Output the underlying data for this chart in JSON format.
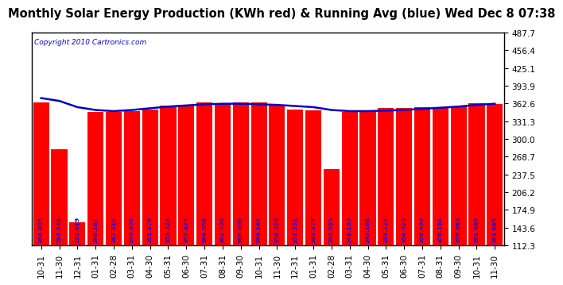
{
  "title": "Monthly Solar Energy Production (KWh red) & Running Avg (blue) Wed Dec 8 07:38",
  "copyright": "Copyright 2010 Cartronics.com",
  "categories": [
    "10-31",
    "11-30",
    "12-31",
    "01-31",
    "02-28",
    "03-31",
    "04-30",
    "05-31",
    "06-30",
    "07-31",
    "08-31",
    "09-30",
    "10-31",
    "11-30",
    "12-31",
    "01-31",
    "02-28",
    "03-31",
    "04-30",
    "05-31",
    "06-30",
    "07-31",
    "08-31",
    "09-30",
    "10-31",
    "11-30"
  ],
  "bar_values": [
    364.405,
    281.246,
    152.619,
    348.167,
    347.819,
    349.609,
    351.878,
    358.329,
    358.473,
    364.056,
    362.9,
    365.0,
    364.14,
    358.525,
    352.331,
    349.674,
    246.965,
    348.165,
    349.168,
    354.729,
    354.529,
    356.45,
    356.164,
    356.863,
    362.665,
    361.985
  ],
  "running_avg": [
    372,
    367,
    356,
    351,
    349,
    351,
    354,
    357,
    359,
    361,
    362,
    362,
    361,
    360,
    358,
    356,
    351,
    349,
    349,
    350,
    351,
    353,
    355,
    357,
    360,
    362
  ],
  "ylim_low": 112.3,
  "ylim_high": 487.7,
  "yticks": [
    112.3,
    143.6,
    174.9,
    206.2,
    237.5,
    268.7,
    300.0,
    331.3,
    362.6,
    393.9,
    425.1,
    456.4,
    487.7
  ],
  "bar_color": "#ff0000",
  "line_color": "#0000cc",
  "bg_color": "#ffffff",
  "title_fontsize": 10.5,
  "copyright_fontsize": 6.5,
  "val_label_fontsize": 5.2,
  "tick_fontsize": 7.5
}
